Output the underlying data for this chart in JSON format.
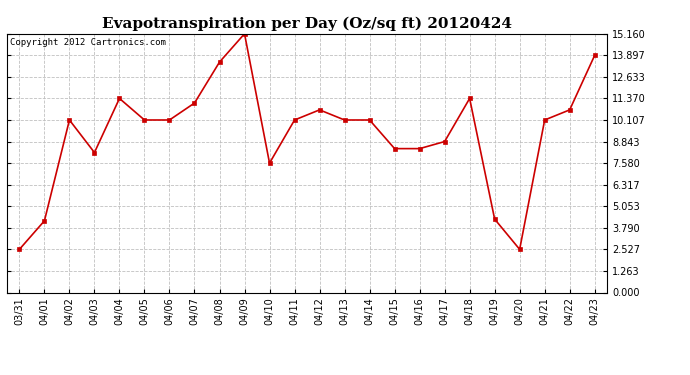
{
  "title": "Evapotranspiration per Day (Oz/sq ft) 20120424",
  "copyright": "Copyright 2012 Cartronics.com",
  "x_labels": [
    "03/31",
    "04/01",
    "04/02",
    "04/03",
    "04/04",
    "04/05",
    "04/06",
    "04/07",
    "04/08",
    "04/09",
    "04/10",
    "04/11",
    "04/12",
    "04/13",
    "04/14",
    "04/15",
    "04/16",
    "04/17",
    "04/18",
    "04/19",
    "04/20",
    "04/21",
    "04/22",
    "04/23"
  ],
  "y_values": [
    2.527,
    4.2,
    10.107,
    8.2,
    11.37,
    10.107,
    10.107,
    11.1,
    13.5,
    15.16,
    7.58,
    10.107,
    10.7,
    10.107,
    10.107,
    8.43,
    8.43,
    8.843,
    11.37,
    4.3,
    2.527,
    10.107,
    10.7,
    13.897
  ],
  "line_color": "#cc0000",
  "marker": "s",
  "marker_size": 3,
  "background_color": "#ffffff",
  "plot_bg_color": "#ffffff",
  "grid_color": "#c0c0c0",
  "ylim": [
    0.0,
    15.16
  ],
  "yticks": [
    0.0,
    1.263,
    2.527,
    3.79,
    5.053,
    6.317,
    7.58,
    8.843,
    10.107,
    11.37,
    12.633,
    13.897,
    15.16
  ],
  "title_fontsize": 11,
  "tick_fontsize": 7,
  "copyright_fontsize": 6.5
}
